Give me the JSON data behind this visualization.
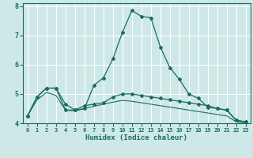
{
  "xlabel": "Humidex (Indice chaleur)",
  "ylabel": "",
  "background_color": "#cde8e7",
  "grid_color": "#ffffff",
  "line_color": "#1a6b60",
  "xlim": [
    -0.5,
    23.5
  ],
  "ylim": [
    4.0,
    8.1
  ],
  "yticks": [
    4,
    5,
    6,
    7,
    8
  ],
  "xticks": [
    0,
    1,
    2,
    3,
    4,
    5,
    6,
    7,
    8,
    9,
    10,
    11,
    12,
    13,
    14,
    15,
    16,
    17,
    18,
    19,
    20,
    21,
    22,
    23
  ],
  "series1_x": [
    0,
    1,
    2,
    3,
    4,
    5,
    6,
    7,
    8,
    9,
    10,
    11,
    12,
    13,
    14,
    15,
    16,
    17,
    18,
    19,
    20,
    21,
    22,
    23
  ],
  "series1_y": [
    4.25,
    4.9,
    5.2,
    5.2,
    4.65,
    4.45,
    4.5,
    5.3,
    5.55,
    6.2,
    7.1,
    7.85,
    7.65,
    7.6,
    6.6,
    5.9,
    5.5,
    5.0,
    4.85,
    4.55,
    4.5,
    4.45,
    4.1,
    4.05
  ],
  "series2_x": [
    0,
    1,
    2,
    3,
    4,
    5,
    6,
    7,
    8,
    9,
    10,
    11,
    12,
    13,
    14,
    15,
    16,
    17,
    18,
    19,
    20,
    21,
    22,
    23
  ],
  "series2_y": [
    4.25,
    4.9,
    5.2,
    5.2,
    4.45,
    4.45,
    4.6,
    4.65,
    4.7,
    4.9,
    5.0,
    5.0,
    4.95,
    4.9,
    4.85,
    4.8,
    4.75,
    4.7,
    4.65,
    4.6,
    4.5,
    4.45,
    4.1,
    4.05
  ],
  "series3_x": [
    0,
    1,
    2,
    3,
    4,
    5,
    6,
    7,
    8,
    9,
    10,
    11,
    12,
    13,
    14,
    15,
    16,
    17,
    18,
    19,
    20,
    21,
    22,
    23
  ],
  "series3_y": [
    4.25,
    4.8,
    5.05,
    4.95,
    4.45,
    4.42,
    4.5,
    4.58,
    4.65,
    4.72,
    4.78,
    4.75,
    4.7,
    4.65,
    4.6,
    4.55,
    4.5,
    4.45,
    4.4,
    4.35,
    4.3,
    4.25,
    4.05,
    4.0
  ]
}
